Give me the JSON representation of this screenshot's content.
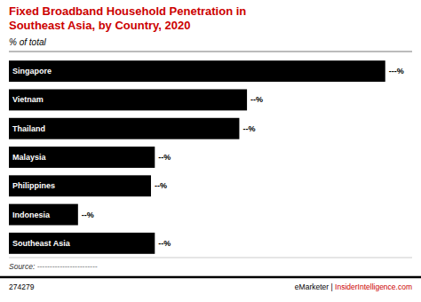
{
  "chart_data": {
    "type": "bar",
    "orientation": "horizontal",
    "title": "Fixed Broadband Household Penetration in\nSoutheast Asia, by Country, 2020",
    "subtitle": "% of total",
    "categories": [
      "Singapore",
      "Vietnam",
      "Thailand",
      "Malaysia",
      "Philippines",
      "Indonesia",
      "Southeast Asia"
    ],
    "values": [
      98,
      62,
      60,
      38,
      37,
      18,
      38
    ],
    "value_labels": [
      "---%",
      "--%",
      "--%",
      "--%",
      "--%",
      "--%",
      "--%"
    ],
    "data_labels": true,
    "color": "#000000",
    "xlim": [
      0,
      105
    ],
    "tick_labels": false,
    "grid": false,
    "annotations": [
      "Source: ------------------------",
      "274279",
      "eMarketer | ",
      "InsiderIntelligence.com"
    ]
  }
}
